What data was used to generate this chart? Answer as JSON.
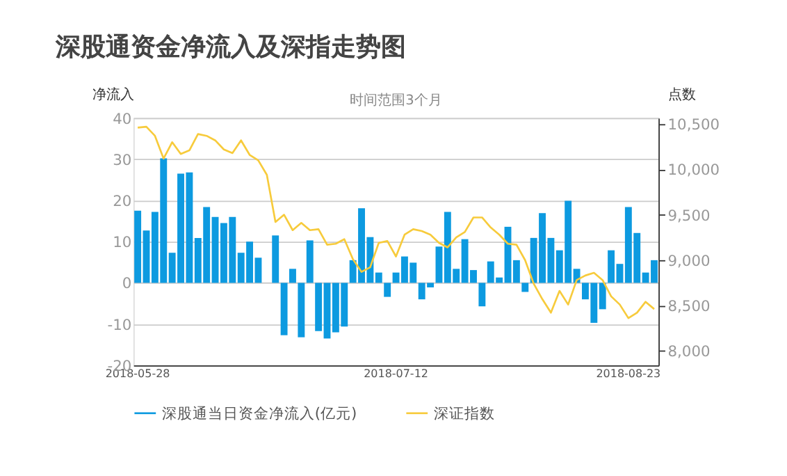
{
  "chart_data": {
    "type": "bar",
    "title": "深股通资金净流入及深指走势图",
    "subtitle": "时间范围3个月",
    "ylabel": "净流入",
    "y2label": "点数",
    "categories": [
      "2018-05-28",
      null,
      null,
      null,
      null,
      null,
      null,
      null,
      null,
      null,
      null,
      null,
      null,
      null,
      null,
      null,
      null,
      null,
      null,
      null,
      null,
      null,
      null,
      null,
      null,
      null,
      null,
      null,
      null,
      null,
      "2018-07-12",
      null,
      null,
      null,
      null,
      null,
      null,
      null,
      null,
      null,
      null,
      null,
      null,
      null,
      null,
      null,
      null,
      null,
      null,
      null,
      null,
      null,
      null,
      null,
      null,
      null,
      null,
      "2018-08-23",
      null,
      null,
      null
    ],
    "series": [
      {
        "name": "深股通当日资金净流入(亿元)",
        "color": "#0d9ae0",
        "values": [
          17.5,
          12.7,
          17.2,
          30.2,
          7.3,
          26.5,
          26.8,
          10.9,
          18.4,
          16,
          14.5,
          16,
          7.3,
          10,
          6.1,
          null,
          11.5,
          -12.7,
          3.4,
          -13.2,
          10.3,
          -11.7,
          -13.5,
          -12,
          -10.6,
          5.5,
          18.1,
          11.1,
          2.5,
          -3.4,
          2.5,
          6.4,
          4.9,
          -4,
          -1.1,
          8.8,
          17.2,
          3.4,
          10.6,
          3.1,
          -5.7,
          5.2,
          1.3,
          13.6,
          5.5,
          -2.2,
          10.9,
          16.9,
          10.9,
          7.9,
          19.9,
          3.4,
          -4,
          -9.7,
          -6.4,
          7.9,
          4.6,
          18.4,
          12.1,
          2.5,
          5.5
        ]
      },
      {
        "name": "深证指数",
        "type": "line",
        "axis": "y2",
        "color": "#f7cb3c",
        "values": [
          10460,
          10470,
          10370,
          10120,
          10300,
          10170,
          10210,
          10390,
          10370,
          10320,
          10220,
          10180,
          10320,
          10160,
          10100,
          9940,
          9420,
          9500,
          9330,
          9410,
          9330,
          9340,
          9170,
          9180,
          9230,
          9010,
          8870,
          8920,
          9190,
          9210,
          9040,
          9280,
          9340,
          9320,
          9280,
          9190,
          9140,
          9250,
          9310,
          9470,
          9470,
          9360,
          9280,
          9180,
          9170,
          9000,
          8740,
          8570,
          8420,
          8660,
          8510,
          8780,
          8830,
          8860,
          8780,
          8600,
          8510,
          8360,
          8420,
          8540,
          8460
        ]
      }
    ],
    "ylim": [
      -20,
      40
    ],
    "yticks": [
      -20,
      -10,
      0,
      10,
      20,
      30,
      40
    ],
    "y2lim": [
      7840,
      10567
    ],
    "y2ticks": [
      {
        "value": 8000,
        "label": "8,000"
      },
      {
        "value": 8500,
        "label": "8,500"
      },
      {
        "value": 9000,
        "label": "9,000"
      },
      {
        "value": 9500,
        "label": "9,500"
      },
      {
        "value": 10000,
        "label": "10,000"
      },
      {
        "value": 10500,
        "label": "10,500"
      }
    ],
    "grid": "y",
    "legend": "bottom",
    "line_style": "solid",
    "marker": "none"
  }
}
